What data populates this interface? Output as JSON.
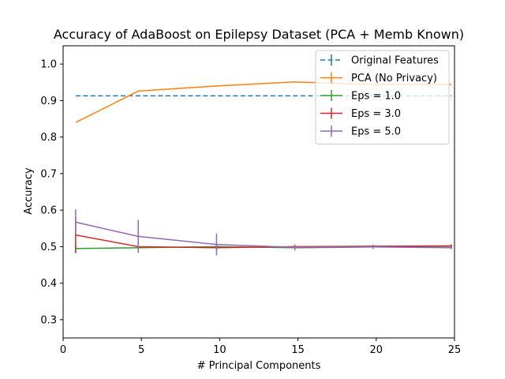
{
  "chart_data": {
    "type": "line",
    "title": "Accuracy of AdaBoost on Epilepsy Dataset (PCA + Memb Known)",
    "xlabel": "# Principal Components",
    "ylabel": "Accuracy",
    "xlim": [
      0,
      25
    ],
    "ylim": [
      0.25,
      1.05
    ],
    "xticks": [
      0,
      5,
      10,
      15,
      20,
      25
    ],
    "yticks": [
      0.3,
      0.4,
      0.5,
      0.6,
      0.7,
      0.8,
      0.9,
      1.0
    ],
    "xtick_labels": [
      "0",
      "5",
      "10",
      "15",
      "20",
      "25"
    ],
    "ytick_labels": [
      "0.3",
      "0.4",
      "0.5",
      "0.6",
      "0.7",
      "0.8",
      "0.9",
      "1.0"
    ],
    "grid": false,
    "legend_position": "top-right",
    "series": [
      {
        "name": "Original Features",
        "color": "#1f77b4",
        "style": "dashed",
        "x": [
          0.8,
          4.8,
          9.8,
          14.8,
          19.8,
          24.8
        ],
        "y": [
          0.913,
          0.913,
          0.913,
          0.913,
          0.913,
          0.913
        ],
        "err": [
          0,
          0,
          0,
          0,
          0,
          0
        ]
      },
      {
        "name": "PCA (No Privacy)",
        "color": "#ff7f0e",
        "style": "solid",
        "x": [
          0.8,
          4.8,
          9.8,
          14.8,
          19.8,
          24.8
        ],
        "y": [
          0.84,
          0.926,
          0.94,
          0.951,
          0.944,
          0.944
        ],
        "err": [
          0,
          0,
          0,
          0,
          0,
          0
        ]
      },
      {
        "name": "Eps = 1.0",
        "color": "#2ca02c",
        "style": "solid",
        "x": [
          0.8,
          4.8,
          9.8,
          14.8,
          19.8,
          24.8
        ],
        "y": [
          0.495,
          0.497,
          0.5,
          0.497,
          0.499,
          0.501
        ],
        "err": [
          0.01,
          0.005,
          0.004,
          0.004,
          0.003,
          0.004
        ]
      },
      {
        "name": "Eps = 3.0",
        "color": "#d62728",
        "style": "solid",
        "x": [
          0.8,
          4.8,
          9.8,
          14.8,
          19.8,
          24.8
        ],
        "y": [
          0.532,
          0.5,
          0.497,
          0.5,
          0.501,
          0.502
        ],
        "err": [
          0.05,
          0.015,
          0.006,
          0.005,
          0.004,
          0.004
        ]
      },
      {
        "name": "Eps = 5.0",
        "color": "#9467bd",
        "style": "solid",
        "x": [
          0.8,
          4.8,
          9.8,
          14.8,
          19.8,
          24.8
        ],
        "y": [
          0.567,
          0.528,
          0.506,
          0.498,
          0.499,
          0.497
        ],
        "err": [
          0.035,
          0.045,
          0.03,
          0.008,
          0.005,
          0.004
        ]
      }
    ]
  }
}
